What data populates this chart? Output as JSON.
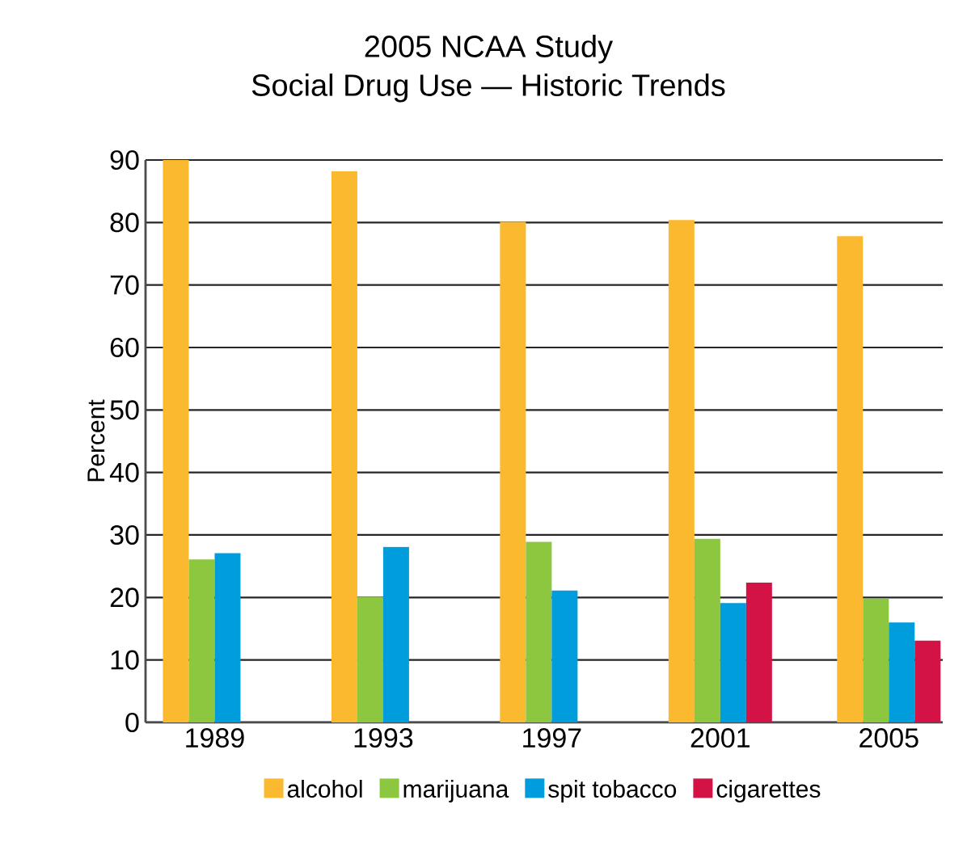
{
  "chart_data": {
    "type": "bar",
    "title": "2005 NCAA Study",
    "subtitle": "Social Drug Use — Historic Trends",
    "ylabel": "Percent",
    "categories": [
      "1989",
      "1993",
      "1997",
      "2001",
      "2005"
    ],
    "series": [
      {
        "name": "alcohol",
        "color": "#fbb92f",
        "values": [
          90,
          88.2,
          80.1,
          80.4,
          77.8
        ]
      },
      {
        "name": "marijuana",
        "color": "#8dc63f",
        "values": [
          26.1,
          20.1,
          28.9,
          29.4,
          19.8
        ]
      },
      {
        "name": "spit tobacco",
        "color": "#009ddc",
        "values": [
          27.1,
          28.1,
          21.1,
          19.1,
          16.0
        ]
      },
      {
        "name": "cigarettes",
        "color": "#d31245",
        "values": [
          null,
          null,
          null,
          22.4,
          13.1
        ]
      }
    ],
    "ylim": [
      0,
      90
    ],
    "yticks": [
      0,
      10,
      20,
      30,
      40,
      50,
      60,
      70,
      80,
      90
    ],
    "grid": "y",
    "legend": "bottom"
  }
}
